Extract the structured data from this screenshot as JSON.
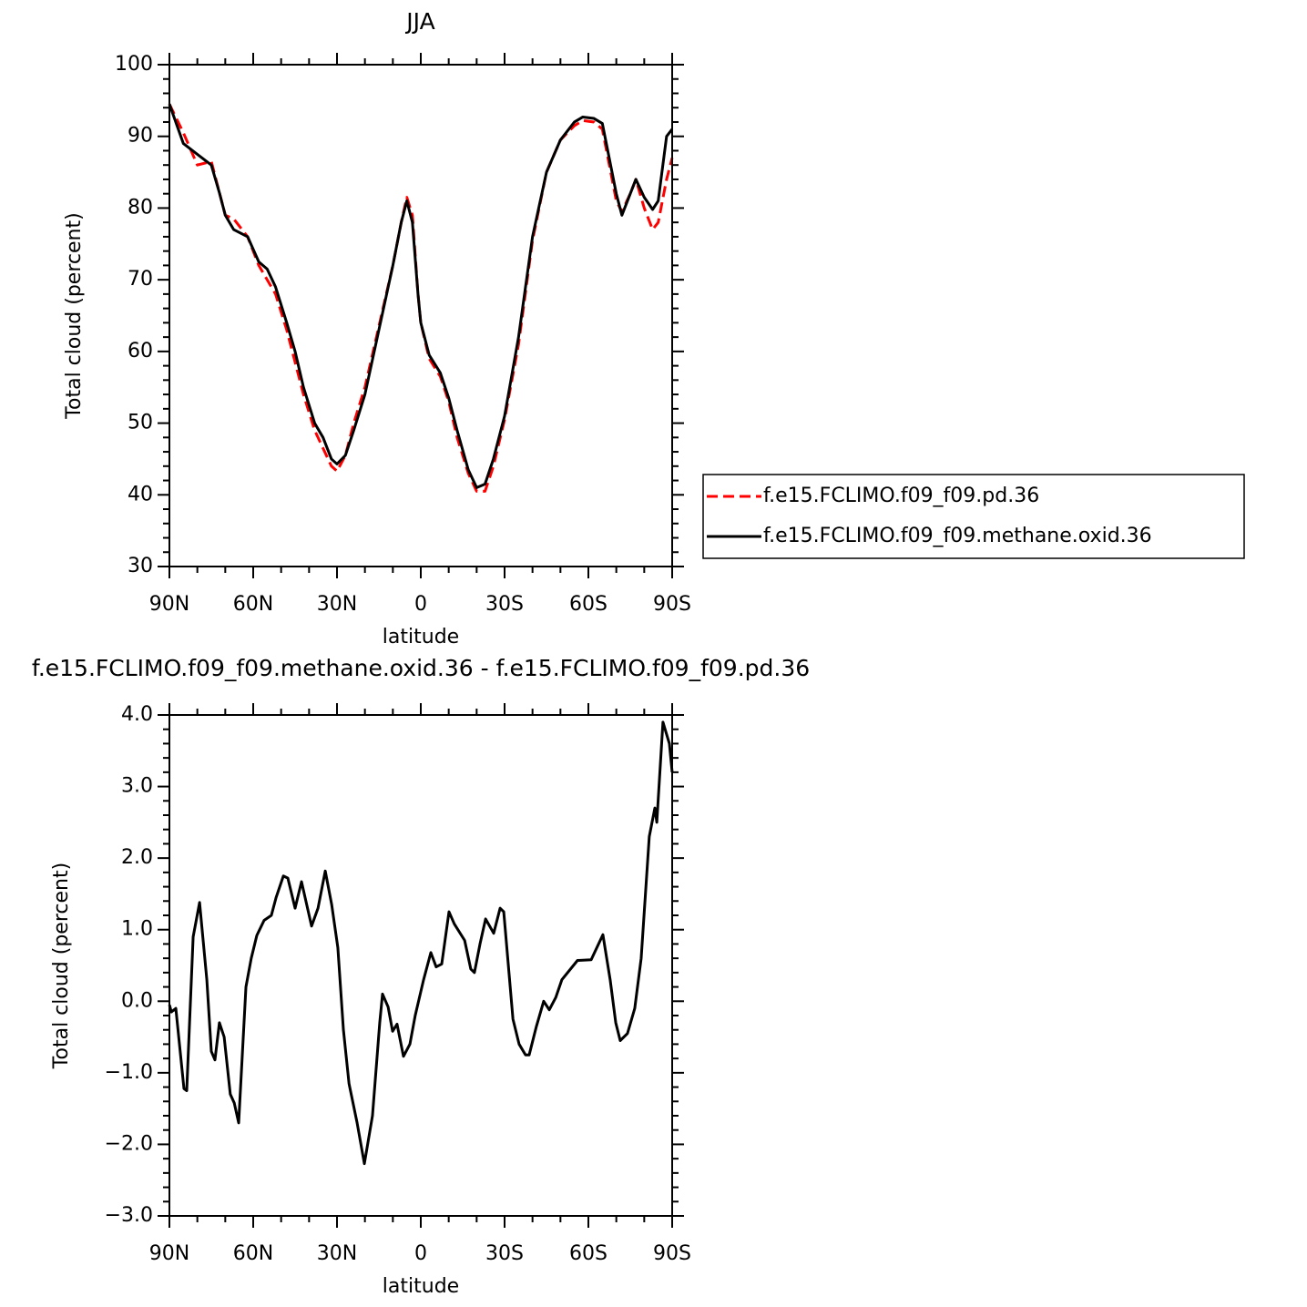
{
  "chart_data": [
    {
      "type": "line",
      "title": "JJA",
      "xlabel": "latitude",
      "ylabel": "Total cloud (percent)",
      "x": [
        90,
        85,
        80,
        75,
        72,
        70,
        67,
        62,
        58,
        55,
        52,
        48,
        45,
        42,
        38,
        35,
        32,
        30,
        27,
        24,
        20,
        15,
        10,
        7,
        5,
        3,
        1,
        0,
        -3,
        -7,
        -10,
        -13,
        -17,
        -20,
        -23,
        -26,
        -30,
        -35,
        -40,
        -45,
        -50,
        -55,
        -58,
        -62,
        -65,
        -70,
        -72,
        -75,
        -77,
        -80,
        -83,
        -85,
        -88,
        -90
      ],
      "series": [
        {
          "name": "f.e15.FCLIMO.f09_f09.pd.36",
          "color": "#ff0000",
          "line_style": "dashed",
          "values": [
            94.5,
            90.5,
            86,
            86.5,
            82,
            79,
            78.5,
            76,
            72,
            70,
            68,
            63,
            58.5,
            54,
            49,
            46.5,
            44,
            43.3,
            45.5,
            50,
            55,
            63.5,
            72,
            78,
            81.5,
            79,
            68,
            64,
            59,
            56.5,
            53,
            48,
            43,
            40.5,
            40.5,
            44,
            50.5,
            61,
            75.5,
            85,
            89.5,
            91.5,
            92.2,
            92,
            91,
            81,
            79.5,
            82,
            84,
            80,
            77,
            78,
            84,
            87
          ]
        },
        {
          "name": "f.e15.FCLIMO.f09_f09.methane.oxid.36",
          "color": "#000000",
          "line_style": "solid",
          "values": [
            94.5,
            89,
            87.5,
            86,
            82,
            79,
            77,
            76,
            72.5,
            71.5,
            69,
            64,
            60,
            55,
            50,
            48,
            45,
            44.3,
            45.5,
            49,
            54,
            63,
            72,
            78,
            81,
            78,
            68,
            64,
            59.5,
            57,
            53.5,
            49,
            43.5,
            41,
            41.5,
            45,
            51,
            62,
            76,
            85,
            89.5,
            92,
            92.7,
            92.5,
            91.8,
            82,
            79,
            82,
            84,
            81.5,
            79.8,
            81,
            90,
            91
          ]
        }
      ],
      "xlim": [
        90,
        -90
      ],
      "xticks": [
        {
          "value": 90,
          "label": "90N"
        },
        {
          "value": 60,
          "label": "60N"
        },
        {
          "value": 30,
          "label": "30N"
        },
        0,
        {
          "value": -30,
          "label": "30S"
        },
        {
          "value": -60,
          "label": "60S"
        },
        {
          "value": -90,
          "label": "90S"
        }
      ],
      "ylim": [
        30,
        100
      ],
      "yticks": [
        30,
        40,
        50,
        60,
        70,
        80,
        90,
        100
      ],
      "legend": "right"
    },
    {
      "type": "line",
      "title": "f.e15.FCLIMO.f09_f09.methane.oxid.36 - f.e15.FCLIMO.f09_f09.pd.36",
      "xlabel": "latitude",
      "ylabel": "Total cloud (percent)",
      "x": [
        90,
        89.3,
        87.7,
        84.8,
        83.8,
        81.5,
        79.2,
        76.6,
        75,
        73.7,
        72.1,
        70.4,
        68.2,
        66.8,
        65.2,
        62.6,
        60.7,
        58.7,
        56.1,
        53.5,
        51.8,
        49.2,
        47.6,
        45,
        42.7,
        39.1,
        36.8,
        34.2,
        31.9,
        29.7,
        27.7,
        25.7,
        22.8,
        20.2,
        17.3,
        14.7,
        13.7,
        11.7,
        10.1,
        8.5,
        6.2,
        3.9,
        2,
        -1,
        -3.6,
        -5.5,
        -7.5,
        -10.1,
        -12,
        -15.7,
        -17.9,
        -19.2,
        -21.2,
        -23.2,
        -26.1,
        -28.4,
        -29.7,
        -33,
        -35.2,
        -37.5,
        -38.8,
        -41.4,
        -44,
        -46,
        -48.3,
        -50.5,
        -56.1,
        -61,
        -65.2,
        -67.8,
        -69.8,
        -71.4,
        -74,
        -76.6,
        -78.9,
        -81.8,
        -83.8,
        -84.5,
        -86.7,
        -89,
        -90
      ],
      "series": [
        {
          "name": "f.e15.FCLIMO.f09_f09.methane.oxid.36 - f.e15.FCLIMO.f09_f09.pd.36",
          "color": "#000000",
          "line_style": "solid",
          "values": [
            -0.05,
            -0.15,
            -0.1,
            -1.22,
            -1.25,
            0.9,
            1.38,
            0.3,
            -0.7,
            -0.82,
            -0.3,
            -0.5,
            -1.3,
            -1.42,
            -1.7,
            0.2,
            0.6,
            0.92,
            1.13,
            1.2,
            1.45,
            1.75,
            1.72,
            1.3,
            1.67,
            1.05,
            1.3,
            1.82,
            1.35,
            0.75,
            -0.4,
            -1.15,
            -1.7,
            -2.27,
            -1.6,
            -0.3,
            0.1,
            -0.08,
            -0.42,
            -0.32,
            -0.77,
            -0.6,
            -0.2,
            0.3,
            0.68,
            0.48,
            0.52,
            1.25,
            1.08,
            0.85,
            0.45,
            0.4,
            0.8,
            1.15,
            0.95,
            1.3,
            1.25,
            -0.25,
            -0.6,
            -0.75,
            -0.75,
            -0.35,
            0,
            -0.12,
            0.05,
            0.3,
            0.57,
            0.58,
            0.93,
            0.3,
            -0.3,
            -0.55,
            -0.45,
            -0.1,
            0.6,
            2.3,
            2.7,
            2.5,
            3.9,
            3.6,
            3.2
          ]
        }
      ],
      "xlim": [
        90,
        -90
      ],
      "xticks": [
        {
          "value": 90,
          "label": "90N"
        },
        {
          "value": 60,
          "label": "60N"
        },
        {
          "value": 30,
          "label": "30N"
        },
        0,
        {
          "value": -30,
          "label": "30S"
        },
        {
          "value": -60,
          "label": "60S"
        },
        {
          "value": -90,
          "label": "90S"
        }
      ],
      "ylim": [
        -3,
        4
      ],
      "yticks": [
        {
          "value": -3,
          "label": "−3.0"
        },
        {
          "value": -2,
          "label": "−2.0"
        },
        {
          "value": -1,
          "label": "−1.0"
        },
        {
          "value": 0,
          "label": "0.0"
        },
        {
          "value": 1,
          "label": "1.0"
        },
        {
          "value": 2,
          "label": "2.0"
        },
        {
          "value": 3,
          "label": "3.0"
        },
        {
          "value": 4,
          "label": "4.0"
        }
      ]
    }
  ]
}
